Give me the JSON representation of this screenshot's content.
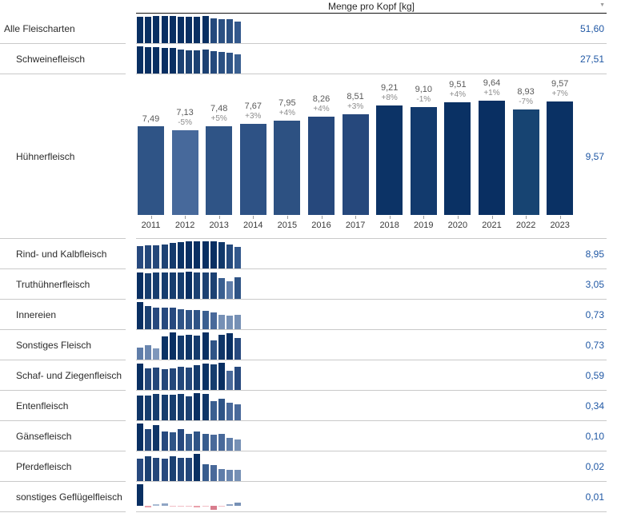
{
  "header": {
    "title": "Menge pro Kopf [kg]",
    "filter_icon": "▼"
  },
  "colors": {
    "value_text": "#1f57a4",
    "separator": "#c9c9c9",
    "header_line": "#141414",
    "dark_navy": "#092f62",
    "negative_pink": "#d87c8d"
  },
  "years": [
    "2011",
    "2012",
    "2013",
    "2014",
    "2015",
    "2016",
    "2017",
    "2018",
    "2019",
    "2020",
    "2021",
    "2022",
    "2023"
  ],
  "chart_data": {
    "type": "bar",
    "title": "Menge pro Kopf [kg]",
    "x": [
      "2011",
      "2012",
      "2013",
      "2014",
      "2015",
      "2016",
      "2017",
      "2018",
      "2019",
      "2020",
      "2021",
      "2022",
      "2023"
    ],
    "series": [
      {
        "name": "Hühnerfleisch",
        "values": [
          7.49,
          7.13,
          7.48,
          7.67,
          7.95,
          8.26,
          8.51,
          9.21,
          9.1,
          9.51,
          9.64,
          8.93,
          9.57
        ]
      }
    ],
    "growth_pct": [
      "",
      "-5%",
      "+5%",
      "+3%",
      "+4%",
      "+4%",
      "+3%",
      "+8%",
      "-1%",
      "+4%",
      "+1%",
      "-7%",
      "+7%"
    ],
    "ylim": [
      0,
      10
    ],
    "grid": false,
    "legend": false,
    "totals_2023": {
      "Alle Fleischarten": 51.6,
      "Schweinefleisch": 27.51,
      "Hühnerfleisch": 9.57,
      "Rind- und Kalbfleisch": 8.95,
      "Truthühnerfleisch": 3.05,
      "Innereien": 0.73,
      "Sonstiges Fleisch": 0.73,
      "Schaf- und Ziegenfleisch": 0.59,
      "Entenfleisch": 0.34,
      "Gänsefleisch": 0.1,
      "Pferdefleisch": 0.02,
      "sonstiges Geflügelfleisch": 0.01
    }
  },
  "rows": [
    {
      "label": "Alle Fleischarten",
      "indent": 0,
      "total": "51,60",
      "bars": {
        "h": [
          0.97,
          0.97,
          1.0,
          1.0,
          1.0,
          0.98,
          0.97,
          0.97,
          0.99,
          0.92,
          0.87,
          0.88,
          0.8
        ],
        "c": [
          "#092f62",
          "#092f62",
          "#092f62",
          "#092f62",
          "#092f62",
          "#092f62",
          "#092f62",
          "#092f62",
          "#092f62",
          "#24497c",
          "#2b5082",
          "#2b5082",
          "#33588c"
        ]
      }
    },
    {
      "label": "Schweinefleisch",
      "indent": 1,
      "total": "27,51",
      "bars": {
        "h": [
          1.0,
          0.96,
          0.98,
          0.94,
          0.94,
          0.88,
          0.86,
          0.86,
          0.87,
          0.81,
          0.79,
          0.77,
          0.71
        ],
        "c": [
          "#092f62",
          "#092f62",
          "#092f62",
          "#092f62",
          "#092f62",
          "#1c4172",
          "#1c4172",
          "#1c4172",
          "#1c4172",
          "#24497c",
          "#2b5082",
          "#2f5486",
          "#3a5f90"
        ]
      }
    },
    {
      "label": "Hühnerfleisch",
      "indent": 1,
      "total": "9,57",
      "expanded": true,
      "detail": {
        "values": [
          7.49,
          7.13,
          7.48,
          7.67,
          7.95,
          8.26,
          8.51,
          9.21,
          9.1,
          9.51,
          9.64,
          8.93,
          9.57
        ],
        "values_display": [
          "7,49",
          "7,13",
          "7,48",
          "7,67",
          "7,95",
          "8,26",
          "8,51",
          "9,21",
          "9,10",
          "9,51",
          "9,64",
          "8,93",
          "9,57"
        ],
        "pct_display": [
          "",
          "-5%",
          "+5%",
          "+3%",
          "+4%",
          "+4%",
          "+3%",
          "+8%",
          "-1%",
          "+4%",
          "+1%",
          "-7%",
          "+7%"
        ],
        "colors": [
          "#2f5486",
          "#47699b",
          "#2f5486",
          "#2e5285",
          "#2d5182",
          "#26487c",
          "#26487c",
          "#0c3366",
          "#123a6d",
          "#0a3164",
          "#092f62",
          "#174472",
          "#0a3164"
        ]
      }
    },
    {
      "label": "Rind- und Kalbfleisch",
      "indent": 1,
      "total": "8,95",
      "bars": {
        "h": [
          0.82,
          0.85,
          0.85,
          0.88,
          0.93,
          0.97,
          1.0,
          1.0,
          1.0,
          1.0,
          0.96,
          0.89,
          0.79
        ],
        "c": [
          "#27497e",
          "#24477a",
          "#24477a",
          "#1e4374",
          "#143a6c",
          "#0a3265",
          "#092f62",
          "#092f62",
          "#092f62",
          "#092f62",
          "#11386a",
          "#24497c",
          "#33588c"
        ]
      }
    },
    {
      "label": "Truthühnerfleisch",
      "indent": 1,
      "total": "3,05",
      "bars": {
        "h": [
          0.98,
          0.95,
          0.96,
          0.96,
          0.96,
          0.97,
          1.0,
          0.97,
          0.96,
          0.96,
          0.75,
          0.65,
          0.78
        ],
        "c": [
          "#092f62",
          "#163d6e",
          "#163d6e",
          "#163d6e",
          "#163d6e",
          "#163d6e",
          "#092f62",
          "#1c4172",
          "#1c4172",
          "#1c4172",
          "#3a5f90",
          "#5f7da9",
          "#2f5486"
        ]
      }
    },
    {
      "label": "Innereien",
      "indent": 1,
      "total": "0,73",
      "bars": {
        "h": [
          1.0,
          0.84,
          0.8,
          0.78,
          0.8,
          0.74,
          0.72,
          0.72,
          0.68,
          0.62,
          0.52,
          0.5,
          0.52
        ],
        "c": [
          "#092f62",
          "#1c4172",
          "#27497e",
          "#27497e",
          "#27497e",
          "#2f5486",
          "#2f5486",
          "#2f5486",
          "#3a5f90",
          "#49699a",
          "#7690b5",
          "#7690b5",
          "#7690b5"
        ]
      }
    },
    {
      "label": "Sonstiges Fleisch",
      "indent": 1,
      "total": "0,73",
      "bars": {
        "h": [
          0.45,
          0.52,
          0.4,
          0.85,
          1.0,
          0.88,
          0.92,
          0.88,
          1.0,
          0.72,
          0.9,
          0.97,
          0.78
        ],
        "c": [
          "#5f7da9",
          "#6a86af",
          "#7e97bb",
          "#0a3265",
          "#092f62",
          "#143a6c",
          "#0f3567",
          "#143a6c",
          "#092f62",
          "#2f5486",
          "#0f3567",
          "#092f62",
          "#27497e"
        ]
      }
    },
    {
      "label": "Schaf- und Ziegenfleisch",
      "indent": 1,
      "total": "0,59",
      "bars": {
        "h": [
          0.98,
          0.78,
          0.82,
          0.77,
          0.79,
          0.85,
          0.83,
          0.91,
          0.98,
          0.94,
          1.0,
          0.72,
          0.85
        ],
        "c": [
          "#092f62",
          "#24477a",
          "#24477a",
          "#24477a",
          "#24477a",
          "#24477a",
          "#24477a",
          "#143a6c",
          "#0a3265",
          "#163d6e",
          "#092f62",
          "#49699a",
          "#27497e"
        ]
      }
    },
    {
      "label": "Entenfleisch",
      "indent": 1,
      "total": "0,34",
      "bars": {
        "h": [
          0.92,
          0.9,
          0.96,
          0.93,
          0.93,
          0.96,
          0.88,
          1.0,
          0.97,
          0.7,
          0.78,
          0.64,
          0.6
        ],
        "c": [
          "#0f3567",
          "#163d6e",
          "#163d6e",
          "#163d6e",
          "#163d6e",
          "#163d6e",
          "#1c4172",
          "#092f62",
          "#0f3567",
          "#3a5f90",
          "#2f5486",
          "#49699a",
          "#49699a"
        ]
      }
    },
    {
      "label": "Gänsefleisch",
      "indent": 1,
      "total": "0,10",
      "bars": {
        "h": [
          1.0,
          0.78,
          0.93,
          0.72,
          0.67,
          0.78,
          0.62,
          0.72,
          0.62,
          0.58,
          0.62,
          0.48,
          0.42
        ],
        "c": [
          "#092f62",
          "#24477a",
          "#0f3567",
          "#27497e",
          "#2f5486",
          "#27497e",
          "#375c8e",
          "#2f5486",
          "#375c8e",
          "#49699a",
          "#49699a",
          "#5f7da9",
          "#7690b5"
        ]
      }
    },
    {
      "label": "Pferdefleisch",
      "indent": 1,
      "total": "0,02",
      "bars": {
        "h": [
          0.82,
          0.9,
          0.86,
          0.82,
          0.9,
          0.86,
          0.86,
          1.0,
          0.62,
          0.58,
          0.45,
          0.4,
          0.42
        ],
        "c": [
          "#27497e",
          "#1c4172",
          "#24477a",
          "#27497e",
          "#1c4172",
          "#24477a",
          "#24477a",
          "#092f62",
          "#375c8e",
          "#49699a",
          "#5f7da9",
          "#6a86af",
          "#7690b5"
        ]
      }
    },
    {
      "label": "sonstiges Geflügelfleisch",
      "indent": 1,
      "total": "0,01",
      "bars": {
        "baseline": 0.78,
        "h": [
          0.78,
          -0.07,
          0.05,
          0.08,
          -0.04,
          -0.04,
          -0.04,
          -0.07,
          -0.04,
          -0.15,
          -0.04,
          0.07,
          0.11
        ],
        "c": [
          "#092f62",
          "#e9a2ac",
          "#a9bcd4",
          "#8fa5c4",
          "#f2bec5",
          "#f2bec5",
          "#f2bec5",
          "#e9a2ac",
          "#f2bec5",
          "#d87c8d",
          "#f2bec5",
          "#8fa5c4",
          "#7690b5"
        ]
      }
    }
  ]
}
